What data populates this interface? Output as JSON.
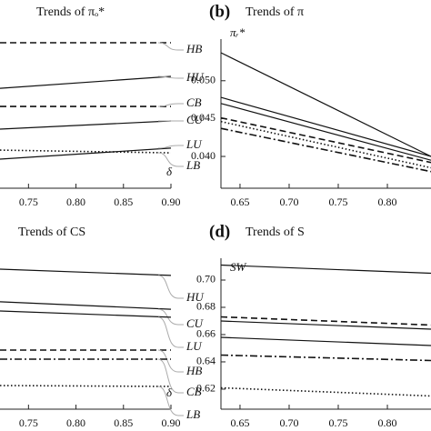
{
  "chart_data": [
    {
      "type": "line",
      "title": "Trends of πₒ*",
      "x_label": "δ",
      "x": [
        0.72,
        0.9
      ],
      "xlim": [
        0.72,
        0.9
      ],
      "xticks": [
        0.75,
        {
          "value": 0.8,
          "label": "0.80"
        },
        0.85,
        {
          "value": 0.9,
          "label": "0.90"
        }
      ],
      "ylim": [
        0,
        1
      ],
      "series": [
        {
          "name": "HB",
          "color": "#111111",
          "dash": "dashed",
          "values": [
            0.904,
            0.904
          ]
        },
        {
          "name": "HU",
          "color": "#111111",
          "dash": "solid",
          "values": [
            0.621,
            0.695
          ]
        },
        {
          "name": "CB",
          "color": "#111111",
          "dash": "dashed",
          "values": [
            0.508,
            0.508
          ]
        },
        {
          "name": "CU",
          "color": "#111111",
          "dash": "solid",
          "values": [
            0.367,
            0.418
          ]
        },
        {
          "name": "LU",
          "color": "#111111",
          "dash": "solid",
          "values": [
            0.181,
            0.249
          ]
        },
        {
          "name": "LB",
          "color": "#111111",
          "dash": "dotted",
          "values": [
            0.237,
            0.22
          ]
        }
      ]
    },
    {
      "type": "line",
      "panel_label": "(b)",
      "title": "Trends of π",
      "y_label": "πᵣ*",
      "x": [
        0.6306,
        0.8444
      ],
      "xlim": [
        0.6306,
        0.8444
      ],
      "xticks": [
        0.65,
        {
          "value": 0.7,
          "label": "0.70"
        },
        0.75,
        {
          "value": 0.8,
          "label": "0.80"
        }
      ],
      "ylim": [
        0.0358,
        0.0555
      ],
      "yticks": [
        {
          "value": 0.04,
          "label": "0.040"
        },
        {
          "value": 0.045,
          "label": "0.045"
        },
        {
          "value": 0.05,
          "label": "0.050"
        }
      ],
      "series": [
        {
          "color": "#111111",
          "dash": "solid",
          "values": [
            0.0537,
            0.04
          ]
        },
        {
          "color": "#111111",
          "dash": "solid",
          "values": [
            0.0478,
            0.04
          ]
        },
        {
          "color": "#111111",
          "dash": "solid",
          "values": [
            0.047,
            0.0395
          ]
        },
        {
          "color": "#111111",
          "dash": "dashed",
          "values": [
            0.0451,
            0.0392
          ]
        },
        {
          "color": "#111111",
          "dash": "dotted",
          "values": [
            0.0446,
            0.0385
          ]
        },
        {
          "color": "#111111",
          "dash": "dashdot",
          "values": [
            0.0437,
            0.038
          ]
        }
      ]
    },
    {
      "type": "line",
      "title": "Trends of CS",
      "x_label": "δ",
      "x": [
        0.72,
        0.9
      ],
      "xlim": [
        0.72,
        0.9
      ],
      "xticks": [
        0.75,
        {
          "value": 0.8,
          "label": "0.80"
        },
        0.85,
        {
          "value": 0.9,
          "label": "0.90"
        }
      ],
      "ylim": [
        0,
        1
      ],
      "series": [
        {
          "name": "HU",
          "color": "#111111",
          "dash": "solid",
          "values": [
            0.87,
            0.831
          ]
        },
        {
          "name": "CU",
          "color": "#111111",
          "dash": "solid",
          "values": [
            0.667,
            0.621
          ]
        },
        {
          "name": "LU",
          "color": "#111111",
          "dash": "solid",
          "values": [
            0.61,
            0.571
          ]
        },
        {
          "name": "HB",
          "color": "#111111",
          "dash": "dashed",
          "values": [
            0.367,
            0.367
          ]
        },
        {
          "name": "CB",
          "color": "#111111",
          "dash": "dashdot",
          "values": [
            0.311,
            0.311
          ]
        },
        {
          "name": "LB",
          "color": "#111111",
          "dash": "dotted",
          "values": [
            0.147,
            0.141
          ]
        }
      ]
    },
    {
      "type": "line",
      "panel_label": "(d)",
      "title": "Trends of S",
      "y_label": "SW",
      "x": [
        0.6306,
        0.8444
      ],
      "xlim": [
        0.6306,
        0.8444
      ],
      "xticks": [
        0.65,
        {
          "value": 0.7,
          "label": "0.70"
        },
        0.75,
        {
          "value": 0.8,
          "label": "0.80"
        }
      ],
      "ylim": [
        0.6053,
        0.716
      ],
      "yticks": [
        0.62,
        0.64,
        0.66,
        0.68,
        {
          "value": 0.7,
          "label": "0.70"
        }
      ],
      "series": [
        {
          "color": "#111111",
          "dash": "solid",
          "values": [
            0.711,
            0.705
          ]
        },
        {
          "color": "#111111",
          "dash": "dashed",
          "values": [
            0.673,
            0.667
          ]
        },
        {
          "color": "#111111",
          "dash": "solid",
          "values": [
            0.67,
            0.664
          ]
        },
        {
          "color": "#111111",
          "dash": "solid",
          "values": [
            0.658,
            0.652
          ]
        },
        {
          "color": "#111111",
          "dash": "dashdot",
          "values": [
            0.645,
            0.641
          ]
        },
        {
          "color": "#111111",
          "dash": "dotted",
          "values": [
            0.621,
            0.615
          ]
        }
      ]
    }
  ]
}
